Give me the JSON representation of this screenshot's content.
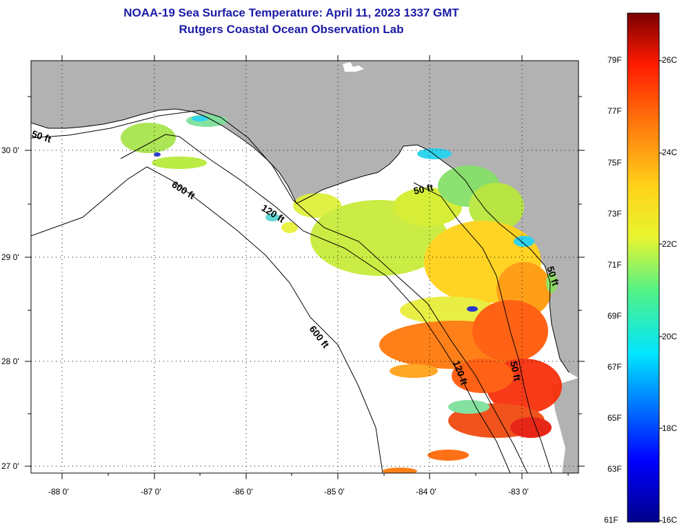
{
  "title": "NOAA-19 Sea Surface Temperature:  April 11, 2023 1337 GMT",
  "subtitle": "Rutgers Coastal Ocean Observation Lab",
  "lon_ticks": [
    "-88 0'",
    "-87 0'",
    "-86 0'",
    "-85 0'",
    "-84 0'",
    "-83 0'"
  ],
  "lat_ticks": [
    "30 0'",
    "29 0'",
    "28 0'",
    "27 0'"
  ],
  "isobath_labels": [
    "50 ft",
    "600 ft",
    "120 ft",
    "50 ft",
    "600 ft",
    "120 ft",
    "50 ft",
    "50 ft"
  ],
  "colorbar": {
    "fahrenheit": [
      "79F",
      "77F",
      "75F",
      "73F",
      "71F",
      "69F",
      "67F",
      "65F",
      "63F",
      "61F"
    ],
    "celsius": [
      "26C",
      "24C",
      "22C",
      "20C",
      "18C",
      "16C"
    ]
  },
  "colors": {
    "land": "#b2b2b2",
    "ocean": "#ffffff",
    "title": "#1a1aa6",
    "warm": "#e61b0c",
    "cold": "#1f2fc9"
  }
}
